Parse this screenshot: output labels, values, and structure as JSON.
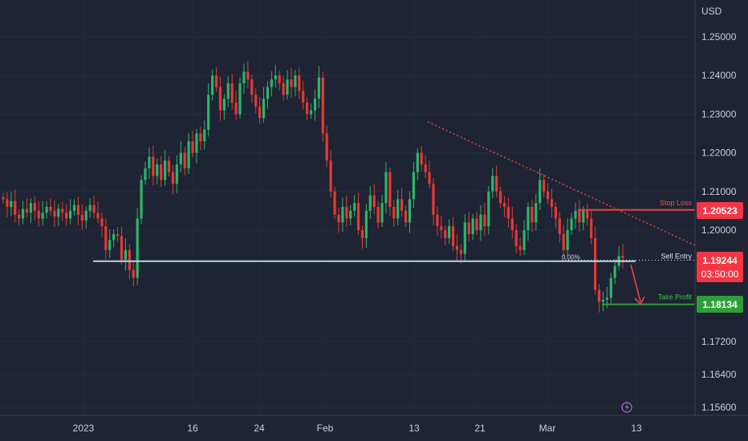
{
  "chart_data": {
    "type": "candlestick",
    "currency": "USD",
    "y_axis": {
      "ticks": [
        "1.25000",
        "1.24000",
        "1.23000",
        "1.22000",
        "1.21000",
        "1.20000",
        "1.17200",
        "1.16400",
        "1.15600"
      ],
      "tick_values": [
        1.25,
        1.24,
        1.23,
        1.22,
        1.21,
        1.2,
        1.172,
        1.164,
        1.156
      ]
    },
    "x_axis": {
      "labels": [
        "2023",
        "16",
        "24",
        "Feb",
        "13",
        "21",
        "Mar",
        "13"
      ]
    },
    "levels": {
      "stop_loss": {
        "label": "Stop Loss",
        "value": 1.20523,
        "text": "1.20523",
        "color": "#f23645"
      },
      "sell_entry": {
        "label": "Sell Entry",
        "value": 1.19244,
        "text": "1.19244",
        "color": "#f23645",
        "countdown": "03:50:00"
      },
      "take_profit": {
        "label": "Take Profit",
        "value": 1.18134,
        "text": "1.18134",
        "color": "#2e9e3a"
      },
      "support_line_value": 1.1922,
      "fib_label": "0.00%"
    },
    "colors": {
      "up": "#2fb36a",
      "down": "#e53935",
      "line": "#b8d4f5",
      "trend": "#ef4040"
    },
    "closes": [
      1.208,
      1.206,
      1.2075,
      1.204,
      1.203,
      1.2055,
      1.2045,
      1.207,
      1.205,
      1.203,
      1.2045,
      1.206,
      1.205,
      1.2035,
      1.2055,
      1.2045,
      1.203,
      1.205,
      1.2065,
      1.204,
      1.2025,
      1.205,
      1.2065,
      1.2045,
      1.203,
      1.201,
      1.195,
      1.1975,
      1.199,
      1.1985,
      1.1925,
      1.195,
      1.19,
      1.188,
      1.203,
      1.213,
      1.216,
      1.219,
      1.214,
      1.217,
      1.213,
      1.218,
      1.215,
      1.212,
      1.217,
      1.22,
      1.216,
      1.223,
      1.22,
      1.225,
      1.223,
      1.226,
      1.235,
      1.24,
      1.237,
      1.231,
      1.234,
      1.238,
      1.233,
      1.23,
      1.238,
      1.241,
      1.239,
      1.235,
      1.232,
      1.229,
      1.234,
      1.237,
      1.239,
      1.24,
      1.238,
      1.235,
      1.239,
      1.237,
      1.24,
      1.236,
      1.233,
      1.23,
      1.231,
      1.234,
      1.2395,
      1.225,
      1.218,
      1.21,
      1.204,
      1.202,
      1.206,
      1.203,
      1.205,
      1.207,
      1.2,
      1.198,
      1.205,
      1.209,
      1.206,
      1.202,
      1.207,
      1.215,
      1.206,
      1.203,
      1.208,
      1.205,
      1.202,
      1.208,
      1.215,
      1.22,
      1.217,
      1.215,
      1.212,
      1.204,
      1.201,
      1.2,
      1.198,
      1.201,
      1.196,
      1.195,
      1.194,
      1.202,
      1.199,
      1.203,
      1.2,
      1.204,
      1.201,
      1.21,
      1.214,
      1.21,
      1.207,
      1.206,
      1.203,
      1.2,
      1.196,
      1.195,
      1.2,
      1.206,
      1.202,
      1.207,
      1.213,
      1.21,
      1.208,
      1.206,
      1.203,
      1.199,
      1.195,
      1.2,
      1.203,
      1.205,
      1.202,
      1.205,
      1.203,
      1.198,
      1.185,
      1.182,
      1.1825,
      1.183,
      1.188,
      1.191,
      1.1935,
      1.193
    ],
    "ann": {
      "fib": "0.00%"
    }
  }
}
